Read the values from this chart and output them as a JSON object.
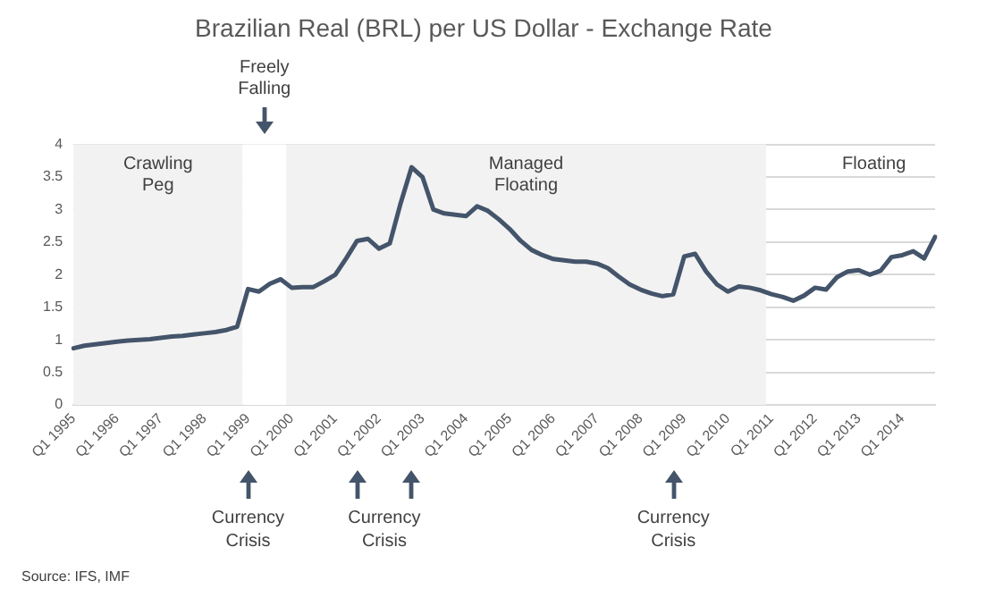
{
  "chart_data": {
    "type": "line",
    "title": "Brazilian Real (BRL) per US Dollar - Exchange Rate",
    "categories": [
      "Q1 1995",
      null,
      null,
      null,
      "Q1 1996",
      null,
      null,
      null,
      "Q1 1997",
      null,
      null,
      null,
      "Q1 1998",
      null,
      null,
      null,
      "Q1 1999",
      null,
      null,
      null,
      "Q1 2000",
      null,
      null,
      null,
      "Q1 2001",
      null,
      null,
      null,
      "Q1 2002",
      null,
      null,
      null,
      "Q1 2003",
      null,
      null,
      null,
      "Q1 2004",
      null,
      null,
      null,
      "Q1 2005",
      null,
      null,
      null,
      "Q1 2006",
      null,
      null,
      null,
      "Q1 2007",
      null,
      null,
      null,
      "Q1 2008",
      null,
      null,
      null,
      "Q1 2009",
      null,
      null,
      null,
      "Q1 2010",
      null,
      null,
      null,
      "Q1 2011",
      null,
      null,
      null,
      "Q1 2012",
      null,
      null,
      null,
      "Q1 2013",
      null,
      null,
      null,
      "Q1 2014",
      null,
      null,
      null
    ],
    "series": [
      {
        "color": "#44546a",
        "values": [
          0.87,
          0.91,
          0.93,
          0.95,
          0.97,
          0.99,
          1.0,
          1.01,
          1.03,
          1.05,
          1.06,
          1.08,
          1.1,
          1.12,
          1.15,
          1.2,
          1.78,
          1.74,
          1.86,
          1.93,
          1.8,
          1.81,
          1.81,
          1.9,
          2.0,
          2.25,
          2.52,
          2.55,
          2.4,
          2.48,
          3.1,
          3.65,
          3.5,
          3.0,
          2.94,
          2.92,
          2.9,
          3.05,
          2.98,
          2.85,
          2.7,
          2.52,
          2.38,
          2.3,
          2.24,
          2.22,
          2.2,
          2.2,
          2.17,
          2.1,
          1.97,
          1.85,
          1.77,
          1.71,
          1.67,
          1.7,
          2.28,
          2.32,
          2.05,
          1.85,
          1.74,
          1.82,
          1.8,
          1.76,
          1.7,
          1.66,
          1.6,
          1.68,
          1.8,
          1.77,
          1.96,
          2.05,
          2.07,
          2.0,
          2.06,
          2.27,
          2.3,
          2.36,
          2.25,
          2.58
        ]
      }
    ],
    "ylim": [
      0,
      4
    ],
    "yticks": [
      0,
      0.5,
      1,
      1.5,
      2,
      2.5,
      3,
      3.5,
      4
    ],
    "grid": "y",
    "marker": "none",
    "line_style": "solid",
    "legend": false,
    "bands": [
      {
        "axis": "x",
        "from": "Q1 1995",
        "to": "Q1 1999",
        "label": "Crawling Peg",
        "color": "#f2f2f2"
      },
      {
        "axis": "x",
        "from": "Q1 1999",
        "to": "Q1 2000",
        "label": "Freely Falling",
        "color": "#ffffff"
      },
      {
        "axis": "x",
        "from": "Q1 2000",
        "to": "Q1 2011",
        "label": "Managed Floating",
        "color": "#f2f2f2"
      }
    ],
    "annotations": [
      "Currency Crisis",
      "Currency Crisis",
      "Currency Crisis",
      "Floating",
      "Source: IFS, IMF"
    ]
  }
}
